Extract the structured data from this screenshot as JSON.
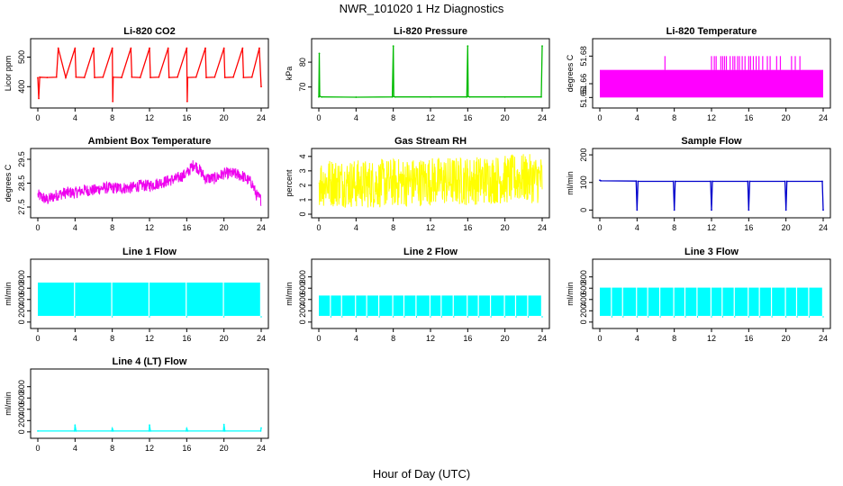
{
  "figure": {
    "title": "NWR_101020  1 Hz Diagnostics",
    "xlabel": "Hour of Day (UTC)"
  },
  "chart_data": [
    {
      "type": "line",
      "title": "Li-820 CO2",
      "ylabel": "Licor ppm",
      "color": "#ff0000",
      "xlim": [
        0,
        24
      ],
      "ylim": [
        340,
        550
      ],
      "xticks": [
        0,
        4,
        8,
        12,
        16,
        20,
        24
      ],
      "yticks": [
        400,
        500
      ],
      "series": [
        {
          "x": [
            0,
            0.1,
            0.2,
            1,
            2,
            2.2,
            3,
            4,
            4.1,
            5,
            6,
            6.1,
            7,
            8,
            8.05,
            8.1,
            9,
            10,
            10.1,
            11,
            12,
            12.1,
            13,
            14,
            14.1,
            15,
            16,
            16.05,
            16.1,
            17,
            18,
            18.1,
            19,
            20,
            20.1,
            21,
            22,
            22.1,
            23,
            23.8,
            24
          ],
          "y": [
            430,
            360,
            432,
            431,
            432,
            530,
            431,
            530,
            432,
            431,
            530,
            431,
            432,
            530,
            350,
            432,
            431,
            530,
            432,
            431,
            530,
            431,
            432,
            530,
            431,
            432,
            530,
            350,
            431,
            432,
            530,
            431,
            432,
            530,
            431,
            432,
            530,
            431,
            432,
            530,
            400
          ]
        }
      ]
    },
    {
      "type": "line",
      "title": "Li-820 Pressure",
      "ylabel": "kPa",
      "color": "#00bb00",
      "xlim": [
        0,
        24
      ],
      "ylim": [
        63,
        88
      ],
      "xticks": [
        0,
        4,
        8,
        12,
        16,
        20,
        24
      ],
      "yticks": [
        70,
        80
      ],
      "series": [
        {
          "x": [
            0,
            0.05,
            0.1,
            0.3,
            4,
            7.9,
            8,
            8.05,
            8.2,
            12,
            15.9,
            16,
            16.05,
            16.2,
            20,
            23.9,
            24
          ],
          "y": [
            66,
            83.5,
            66.3,
            66,
            65.9,
            66,
            86.5,
            66.2,
            66,
            66,
            66,
            86.5,
            66.2,
            66,
            66,
            66,
            86.5
          ]
        }
      ]
    },
    {
      "type": "area",
      "title": "Li-820 Temperature",
      "ylabel": "degrees C",
      "color": "#ff00ff",
      "xlim": [
        0,
        24
      ],
      "ylim": [
        51.645,
        51.69
      ],
      "xticks": [
        0,
        4,
        8,
        12,
        16,
        20,
        24
      ],
      "yticks": [
        51.65,
        51.66,
        51.68
      ],
      "series": [
        {
          "band_x": [
            0,
            24
          ],
          "band_low": 51.65,
          "band_high": 51.67,
          "spikes_x": [
            7,
            12,
            12.3,
            12.5,
            13,
            13.2,
            13.4,
            13.6,
            14,
            14.3,
            14.5,
            14.8,
            15,
            15.3,
            15.6,
            16,
            16.2,
            16.5,
            16.8,
            17.1,
            17.5,
            18,
            18.3,
            19,
            19.4,
            20.6,
            21,
            21.5
          ],
          "spike_high": 51.68
        }
      ]
    },
    {
      "type": "line",
      "title": "Ambient Box Temperature",
      "ylabel": "degrees C",
      "color": "#ee00ee",
      "xlim": [
        0,
        24
      ],
      "ylim": [
        27.2,
        29.8
      ],
      "xticks": [
        0,
        4,
        8,
        12,
        16,
        20,
        24
      ],
      "yticks": [
        27.5,
        28.5,
        29.5
      ],
      "series": [
        {
          "x": [
            0,
            1,
            2,
            3,
            4,
            5,
            6,
            7,
            8,
            9,
            10,
            11,
            12,
            13,
            14,
            15,
            16,
            16.8,
            17.5,
            18,
            19,
            20,
            21,
            22,
            23,
            23.5,
            24
          ],
          "y": [
            28.0,
            27.8,
            28.0,
            28.1,
            28.1,
            28.2,
            28.2,
            28.3,
            28.3,
            28.3,
            28.3,
            28.4,
            28.4,
            28.5,
            28.6,
            28.7,
            28.9,
            29.3,
            29.0,
            28.7,
            28.7,
            28.9,
            28.9,
            28.8,
            28.5,
            28.0,
            27.8
          ],
          "noise": 0.5
        }
      ]
    },
    {
      "type": "line",
      "title": "Gas Stream RH",
      "ylabel": "percent",
      "color": "#ffff00",
      "xlim": [
        0,
        24
      ],
      "ylim": [
        0,
        4.3
      ],
      "xticks": [
        0,
        4,
        8,
        12,
        16,
        20,
        24
      ],
      "yticks": [
        0,
        1,
        2,
        3,
        4
      ],
      "series": [
        {
          "x": [
            0,
            2,
            4,
            6,
            8,
            10,
            12,
            14,
            16,
            18,
            20,
            22,
            24
          ],
          "y": [
            2.2,
            2.2,
            2.1,
            2.1,
            2.2,
            2.2,
            2.3,
            2.3,
            2.3,
            2.4,
            2.4,
            2.5,
            2.4
          ],
          "noise": 3.4
        }
      ]
    },
    {
      "type": "line",
      "title": "Sample Flow",
      "ylabel": "ml/min",
      "color": "#0000cc",
      "xlim": [
        0,
        24
      ],
      "ylim": [
        -15,
        210
      ],
      "xticks": [
        0,
        4,
        8,
        12,
        16,
        20,
        24
      ],
      "yticks": [
        0,
        100,
        200
      ],
      "series": [
        {
          "x": [
            0,
            0.1,
            3.9,
            4,
            4.1,
            7.9,
            8,
            8.1,
            11.9,
            12,
            12.1,
            15.9,
            16,
            16.1,
            19.9,
            20,
            20.1,
            23.9,
            24
          ],
          "y": [
            108,
            106,
            105,
            0,
            104,
            104,
            0,
            104,
            104,
            0,
            104,
            104,
            0,
            104,
            104,
            0,
            104,
            104,
            0
          ]
        }
      ]
    },
    {
      "type": "area",
      "title": "Line 1 Flow",
      "ylabel": "ml/min",
      "color": "#00ffff",
      "xlim": [
        0,
        24
      ],
      "ylim": [
        -50,
        1050
      ],
      "xticks": [
        0,
        4,
        8,
        12,
        16,
        20,
        24
      ],
      "yticks": [
        0,
        200,
        400,
        600,
        800
      ],
      "series": [
        {
          "band_low": 110,
          "band_high": 700,
          "gaps_x": [
            4,
            8,
            12,
            16,
            20,
            24
          ]
        }
      ]
    },
    {
      "type": "area",
      "title": "Line 2 Flow",
      "ylabel": "ml/min",
      "color": "#00ffff",
      "xlim": [
        0,
        24
      ],
      "ylim": [
        -50,
        1050
      ],
      "xticks": [
        0,
        4,
        8,
        12,
        16,
        20,
        24
      ],
      "yticks": [
        0,
        200,
        400,
        600,
        800
      ],
      "series": [
        {
          "band_low": 110,
          "band_high": 470,
          "gaps_x": [
            1.3,
            2.5,
            4,
            5.2,
            6.5,
            8,
            9.2,
            10.5,
            12,
            13.2,
            14.5,
            16,
            17.2,
            18.5,
            20,
            21.2,
            22.5,
            24
          ]
        }
      ]
    },
    {
      "type": "area",
      "title": "Line 3 Flow",
      "ylabel": "ml/min",
      "color": "#00ffff",
      "xlim": [
        0,
        24
      ],
      "ylim": [
        -50,
        1050
      ],
      "xticks": [
        0,
        4,
        8,
        12,
        16,
        20,
        24
      ],
      "yticks": [
        0,
        200,
        400,
        600,
        800
      ],
      "series": [
        {
          "band_low": 110,
          "band_high": 610,
          "gaps_x": [
            1.3,
            2.5,
            4,
            5.2,
            6.5,
            8,
            9.2,
            10.5,
            12,
            13.2,
            14.5,
            16,
            17.2,
            18.5,
            20,
            21.2,
            22.5,
            24
          ]
        }
      ]
    },
    {
      "type": "line",
      "title": "Line 4 (LT) Flow",
      "ylabel": "ml/min",
      "color": "#00ffff",
      "xlim": [
        0,
        24
      ],
      "ylim": [
        -50,
        1050
      ],
      "xticks": [
        0,
        4,
        8,
        12,
        16,
        20,
        24
      ],
      "yticks": [
        0,
        200,
        400,
        600,
        800
      ],
      "series": [
        {
          "x": [
            0,
            3.95,
            4,
            4.1,
            7.95,
            8,
            8.1,
            11.95,
            12,
            12.1,
            15.95,
            16,
            16.1,
            19.95,
            20,
            20.1,
            23.95,
            24
          ],
          "y": [
            15,
            15,
            120,
            15,
            15,
            60,
            15,
            15,
            120,
            15,
            15,
            60,
            15,
            15,
            130,
            15,
            15,
            70
          ]
        }
      ]
    }
  ]
}
